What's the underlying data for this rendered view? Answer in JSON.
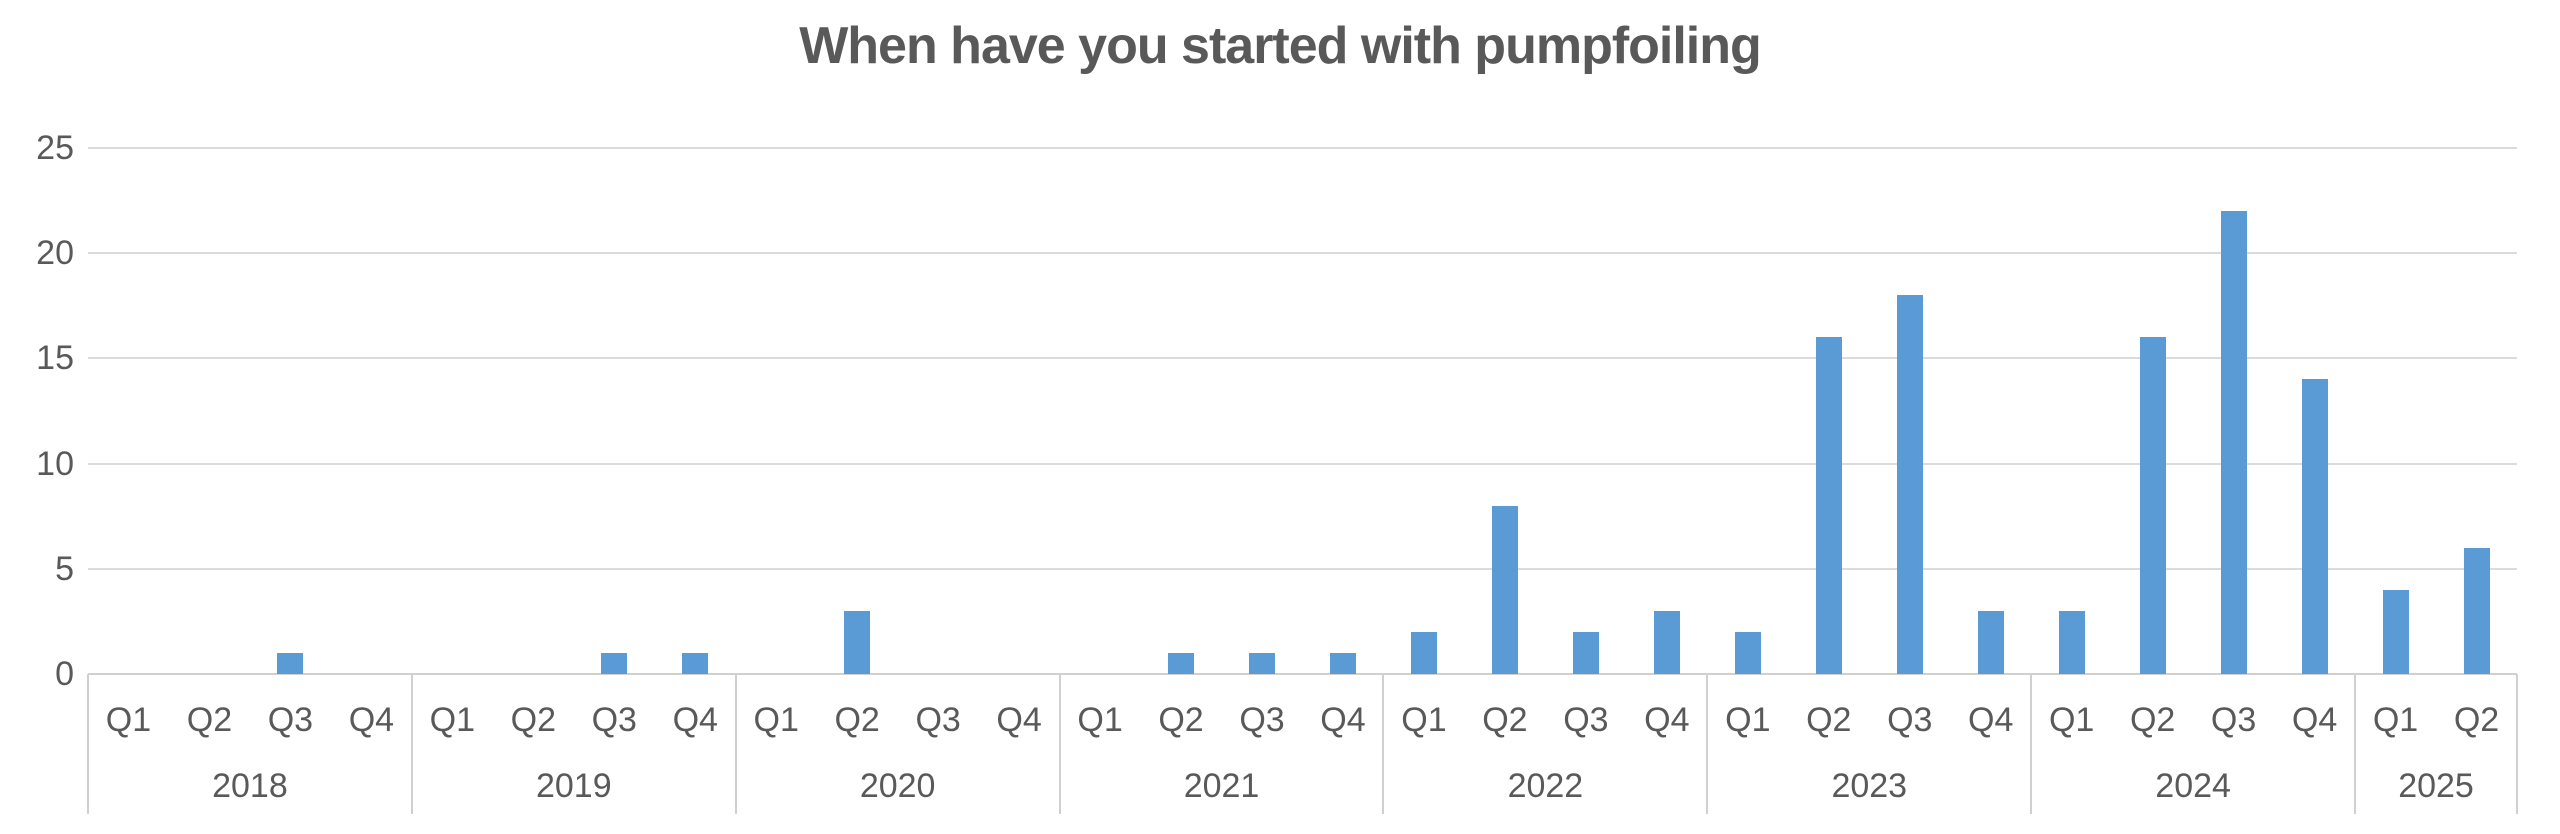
{
  "chart_data": {
    "type": "bar",
    "title": "When have you started with pumpfoiling",
    "xlabel": "",
    "ylabel": "",
    "ylim": [
      0,
      25
    ],
    "y_ticks": [
      0,
      5,
      10,
      15,
      20,
      25
    ],
    "grid": true,
    "legend": "none",
    "colors": {
      "bar": "#5B9BD5",
      "text": "#595959",
      "gridline": "#DBDBDB",
      "axis_line": "#D0D0D0"
    },
    "groups": [
      {
        "year": "2018",
        "quarters": [
          "Q1",
          "Q2",
          "Q3",
          "Q4"
        ],
        "values": [
          0,
          0,
          1,
          0
        ]
      },
      {
        "year": "2019",
        "quarters": [
          "Q1",
          "Q2",
          "Q3",
          "Q4"
        ],
        "values": [
          0,
          0,
          1,
          1
        ]
      },
      {
        "year": "2020",
        "quarters": [
          "Q1",
          "Q2",
          "Q3",
          "Q4"
        ],
        "values": [
          0,
          3,
          0,
          0
        ]
      },
      {
        "year": "2021",
        "quarters": [
          "Q1",
          "Q2",
          "Q3",
          "Q4"
        ],
        "values": [
          0,
          1,
          1,
          1
        ]
      },
      {
        "year": "2022",
        "quarters": [
          "Q1",
          "Q2",
          "Q3",
          "Q4"
        ],
        "values": [
          2,
          8,
          2,
          3
        ]
      },
      {
        "year": "2023",
        "quarters": [
          "Q1",
          "Q2",
          "Q3",
          "Q4"
        ],
        "values": [
          2,
          16,
          18,
          3
        ]
      },
      {
        "year": "2024",
        "quarters": [
          "Q1",
          "Q2",
          "Q3",
          "Q4"
        ],
        "values": [
          3,
          16,
          22,
          14
        ]
      },
      {
        "year": "2025",
        "quarters": [
          "Q1",
          "Q2"
        ],
        "values": [
          4,
          6
        ]
      }
    ]
  }
}
